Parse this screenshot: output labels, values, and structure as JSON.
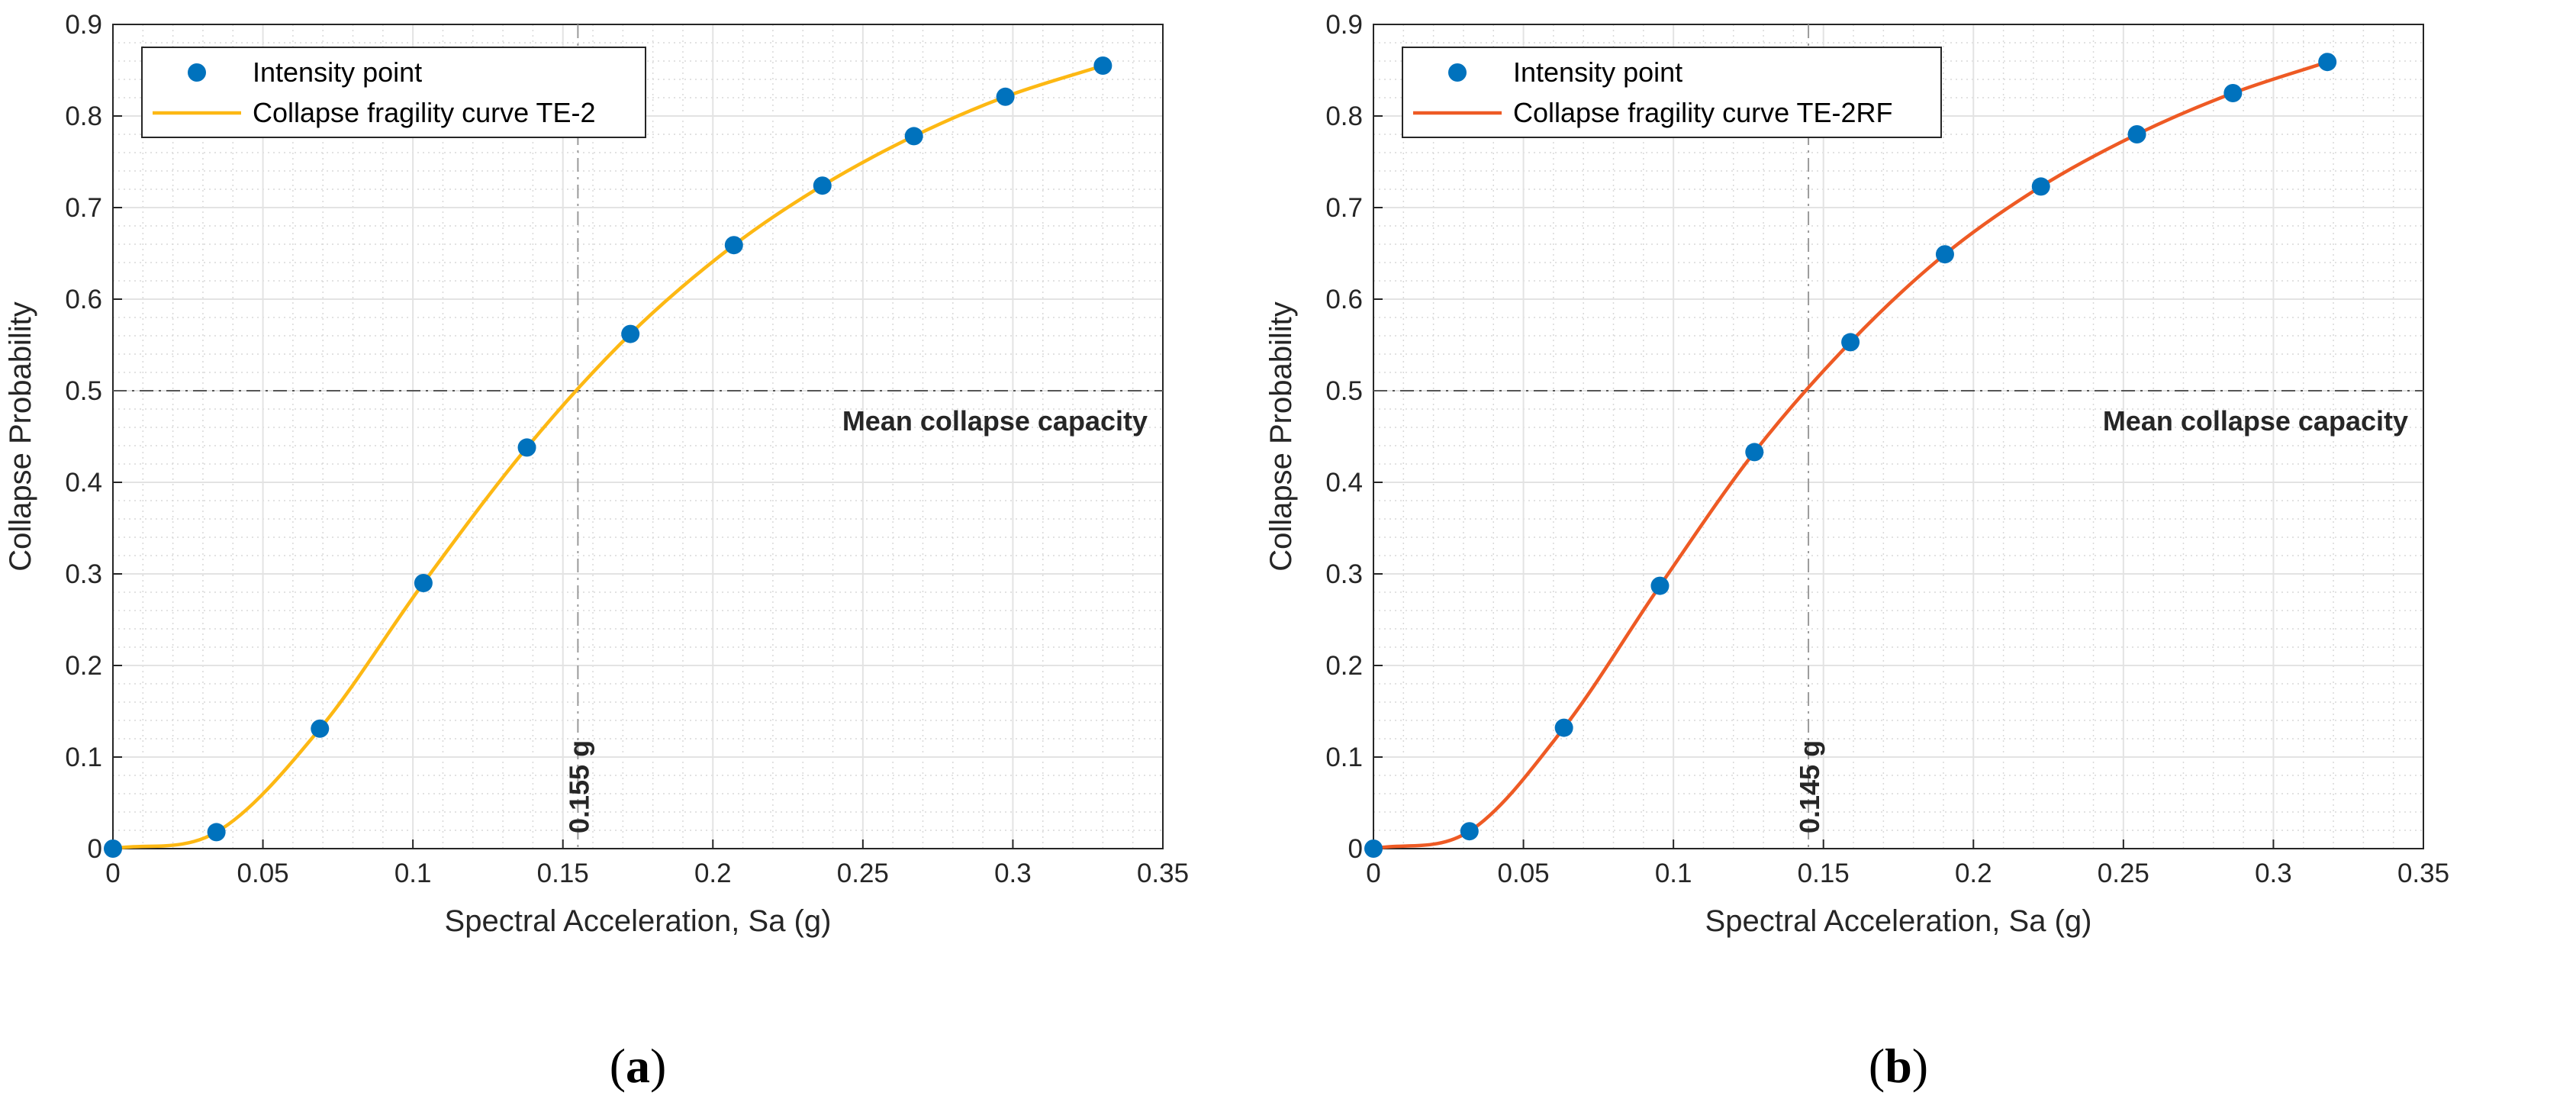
{
  "chart_data": [
    {
      "type": "line",
      "panel_label": "a",
      "xlabel": "Spectral Acceleration, Sa (g)",
      "ylabel": "Collapse Probability",
      "xlim": [
        0,
        0.35
      ],
      "ylim": [
        0,
        0.9
      ],
      "xticks": [
        0,
        0.05,
        0.1,
        0.15,
        0.2,
        0.25,
        0.3,
        0.35
      ],
      "xtick_labels": [
        "0",
        "0.05",
        "0.1",
        "0.15",
        "0.2",
        "0.25",
        "0.3",
        "0.35"
      ],
      "yticks": [
        0,
        0.1,
        0.2,
        0.3,
        0.4,
        0.5,
        0.6,
        0.7,
        0.8,
        0.9
      ],
      "ytick_labels": [
        "0",
        "0.1",
        "0.2",
        "0.3",
        "0.4",
        "0.5",
        "0.6",
        "0.7",
        "0.8",
        "0.9"
      ],
      "grid": true,
      "legend_position": "top-left",
      "series": [
        {
          "name": "Intensity point",
          "kind": "scatter",
          "color": "#0072BD",
          "x": [
            0,
            0.0345,
            0.069,
            0.1035,
            0.138,
            0.1725,
            0.207,
            0.2365,
            0.267,
            0.2975,
            0.33
          ],
          "y": [
            0,
            0.018,
            0.131,
            0.29,
            0.438,
            0.562,
            0.659,
            0.724,
            0.778,
            0.821,
            0.855
          ]
        },
        {
          "name": "Collapse fragility curve TE-2",
          "kind": "line",
          "color": "#FDB813",
          "x": [
            0,
            0.0345,
            0.069,
            0.1035,
            0.138,
            0.1725,
            0.207,
            0.2365,
            0.267,
            0.2975,
            0.33
          ],
          "y": [
            0,
            0.018,
            0.131,
            0.29,
            0.438,
            0.562,
            0.659,
            0.724,
            0.778,
            0.821,
            0.855
          ]
        }
      ],
      "hline": {
        "y": 0.5,
        "label": "Mean collapse capacity"
      },
      "vline": {
        "x": 0.155,
        "label": "0.155 g"
      }
    },
    {
      "type": "line",
      "panel_label": "b",
      "xlabel": "Spectral Acceleration, Sa (g)",
      "ylabel": "Collapse Probability",
      "xlim": [
        0,
        0.35
      ],
      "ylim": [
        0,
        0.9
      ],
      "xticks": [
        0,
        0.05,
        0.1,
        0.15,
        0.2,
        0.25,
        0.3,
        0.35
      ],
      "xtick_labels": [
        "0",
        "0.05",
        "0.1",
        "0.15",
        "0.2",
        "0.25",
        "0.3",
        "0.35"
      ],
      "yticks": [
        0,
        0.1,
        0.2,
        0.3,
        0.4,
        0.5,
        0.6,
        0.7,
        0.8,
        0.9
      ],
      "ytick_labels": [
        "0",
        "0.1",
        "0.2",
        "0.3",
        "0.4",
        "0.5",
        "0.6",
        "0.7",
        "0.8",
        "0.9"
      ],
      "grid": true,
      "legend_position": "top-left",
      "series": [
        {
          "name": "Intensity point",
          "kind": "scatter",
          "color": "#0072BD",
          "x": [
            0,
            0.032,
            0.0635,
            0.0955,
            0.127,
            0.159,
            0.1905,
            0.2225,
            0.2545,
            0.2865,
            0.318
          ],
          "y": [
            0,
            0.019,
            0.132,
            0.287,
            0.433,
            0.553,
            0.649,
            0.723,
            0.78,
            0.825,
            0.859
          ]
        },
        {
          "name": "Collapse fragility curve TE-2RF",
          "kind": "line",
          "color": "#EE5A24",
          "x": [
            0,
            0.032,
            0.0635,
            0.0955,
            0.127,
            0.159,
            0.1905,
            0.2225,
            0.2545,
            0.2865,
            0.318
          ],
          "y": [
            0,
            0.019,
            0.132,
            0.287,
            0.433,
            0.553,
            0.649,
            0.723,
            0.78,
            0.825,
            0.859
          ]
        }
      ],
      "hline": {
        "y": 0.5,
        "label": "Mean collapse capacity"
      },
      "vline": {
        "x": 0.145,
        "label": "0.145 g"
      }
    }
  ]
}
